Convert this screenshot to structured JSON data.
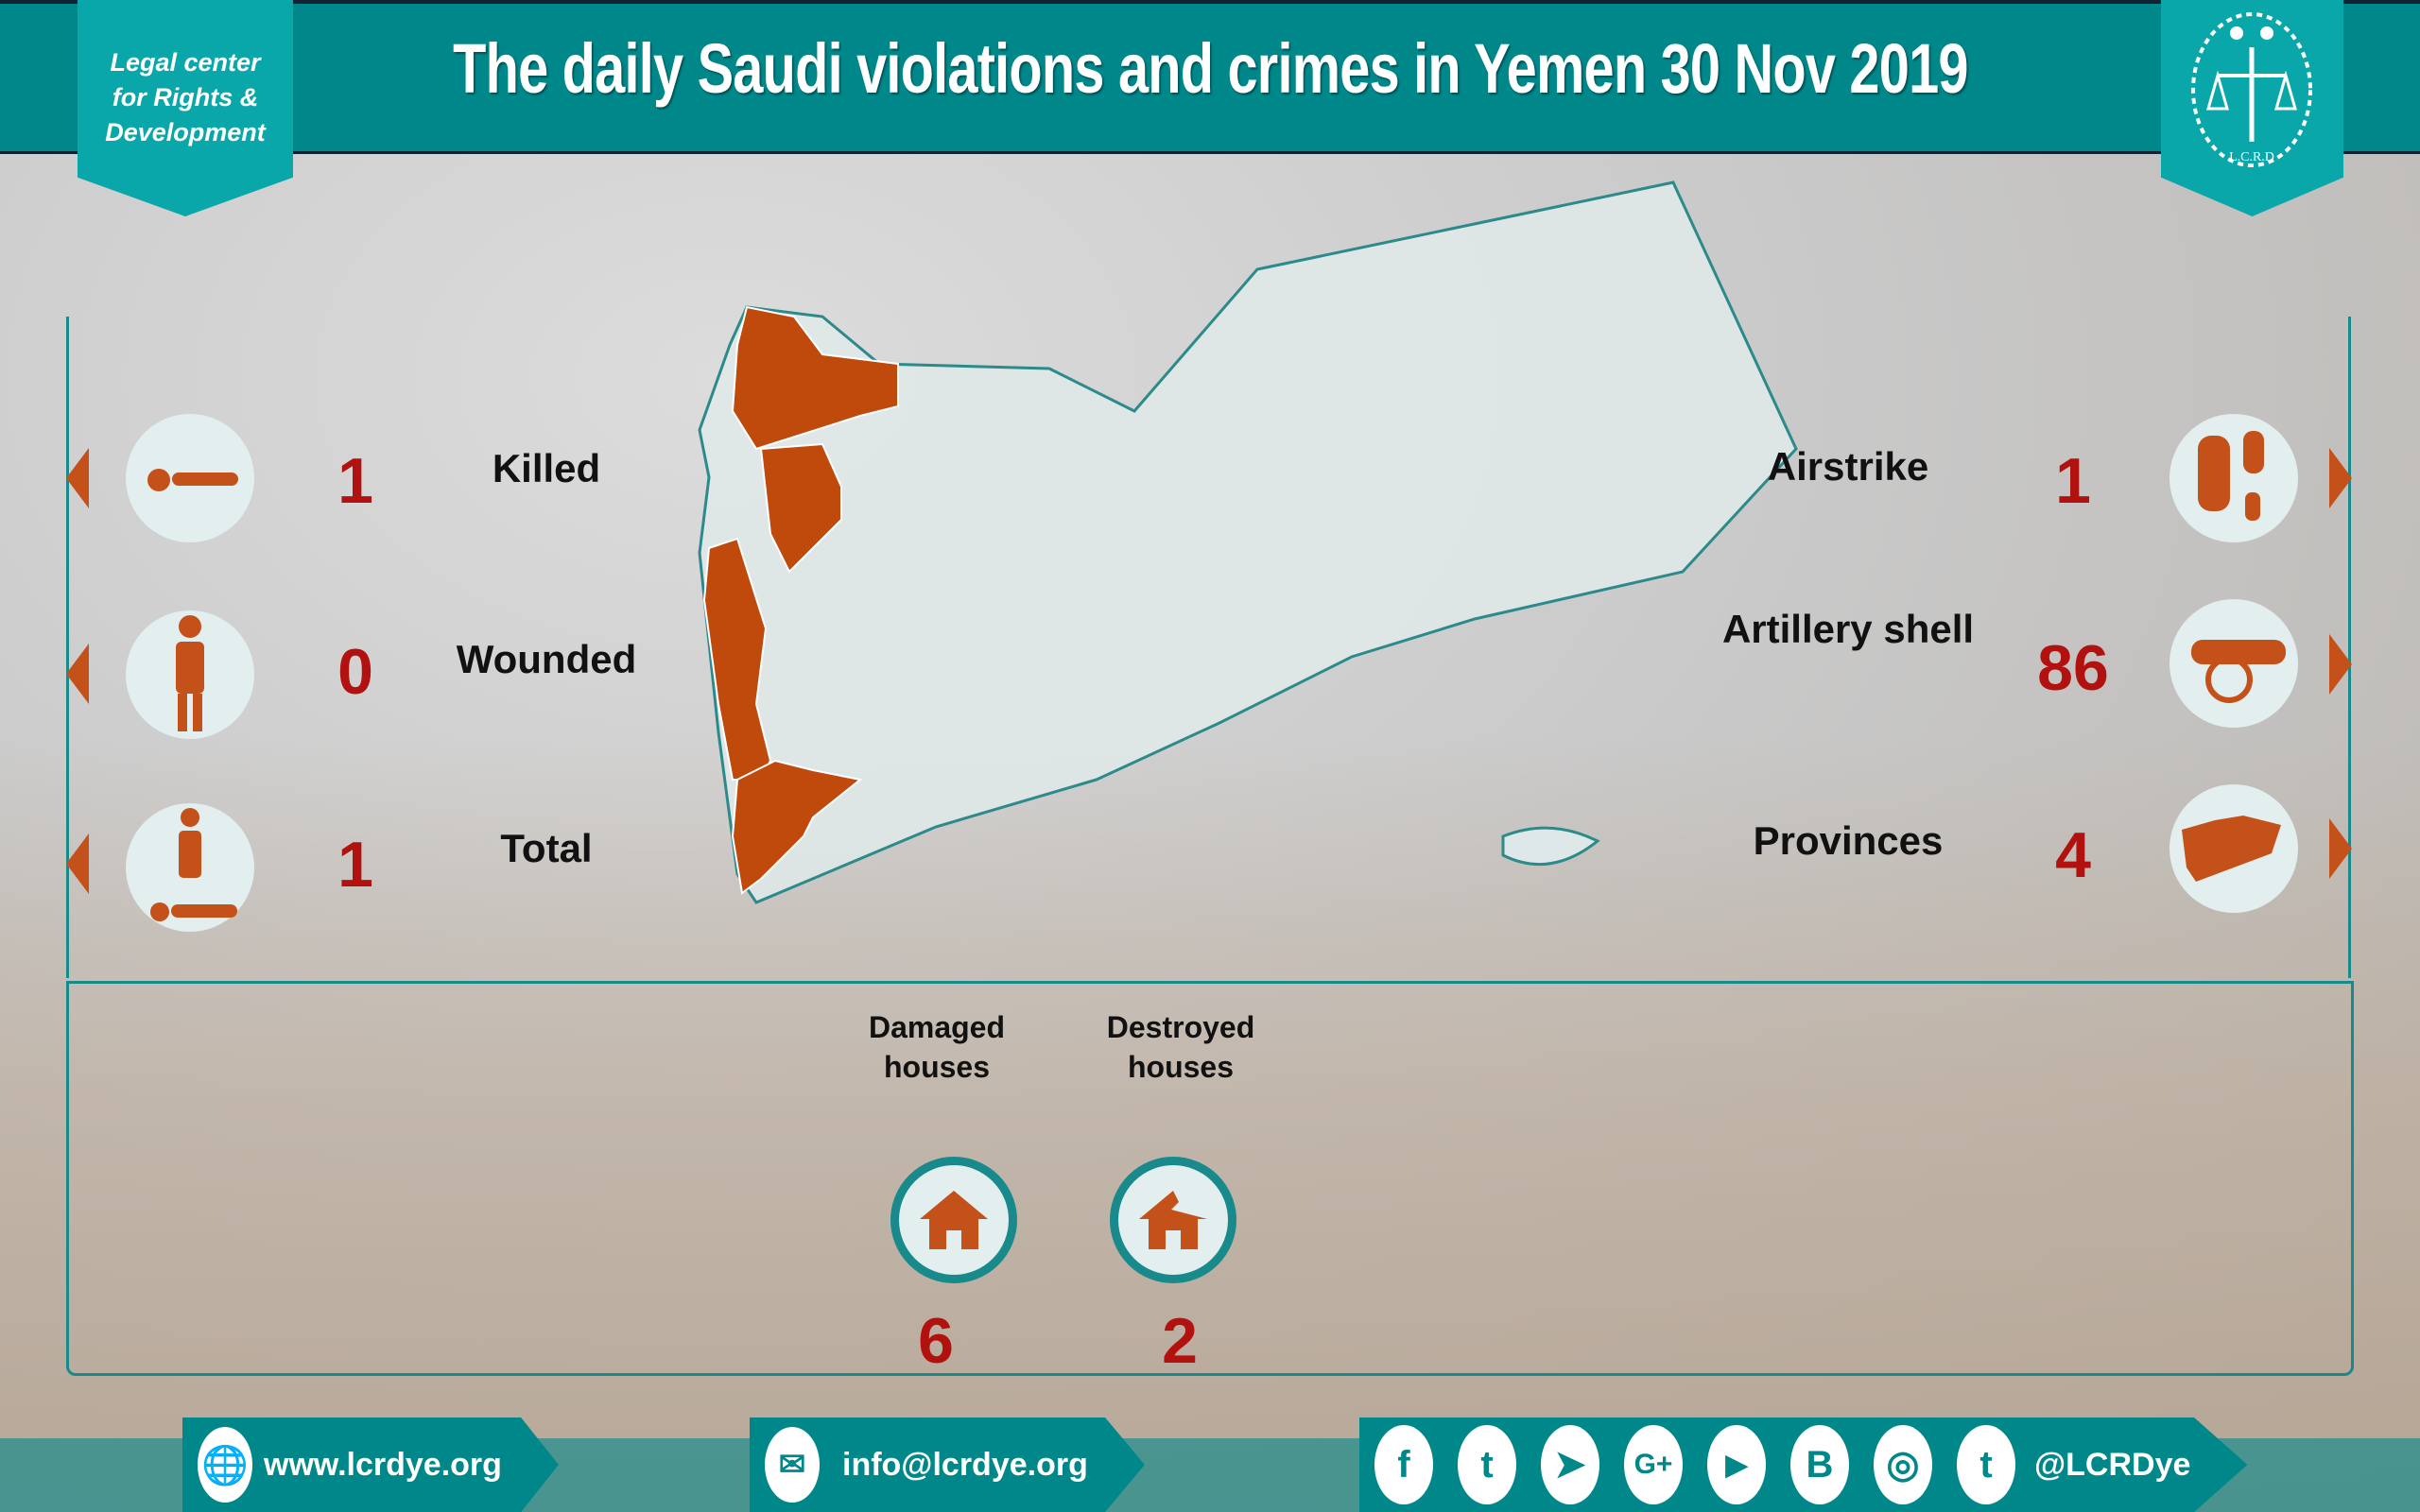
{
  "header": {
    "title": "The daily Saudi violations and crimes in Yemen 30 Nov 2019",
    "org_name": [
      "Legal center",
      "for Rights &",
      "Development"
    ],
    "logo_text": "L.C.R.D"
  },
  "casualties": [
    {
      "label": "Killed",
      "value": "1",
      "icon": "dead-body-icon"
    },
    {
      "label": "Wounded",
      "value": "0",
      "icon": "injured-person-icon"
    },
    {
      "label": "Total",
      "value": "1",
      "icon": "casualties-total-icon"
    }
  ],
  "attacks": [
    {
      "label": "Airstrike",
      "value": "1",
      "icon": "bomb-icon"
    },
    {
      "label": "Artillery shell",
      "value": "86",
      "icon": "cannon-icon"
    },
    {
      "label": "Provinces",
      "value": "4",
      "icon": "yemen-map-icon"
    }
  ],
  "houses": [
    {
      "label": "Damaged houses",
      "value": "6",
      "icon": "house-icon"
    },
    {
      "label": "Destroyed houses",
      "value": "2",
      "icon": "destroyed-house-icon"
    }
  ],
  "colors": {
    "teal": "#00878a",
    "orange": "#c4501a",
    "number_red": "#b2120f"
  },
  "footer": {
    "website": "www.lcrdye.org",
    "email": "info@lcrdye.org",
    "handle": "@LCRDye",
    "social_icons": [
      "facebook-icon",
      "twitter-icon",
      "telegram-icon",
      "google-plus-icon",
      "youtube-icon",
      "blogger-icon",
      "instagram-icon",
      "tumblr-icon"
    ],
    "social_glyphs": [
      "f",
      "t",
      "➤",
      "G+",
      "▶",
      "B",
      "◎",
      "t"
    ]
  }
}
